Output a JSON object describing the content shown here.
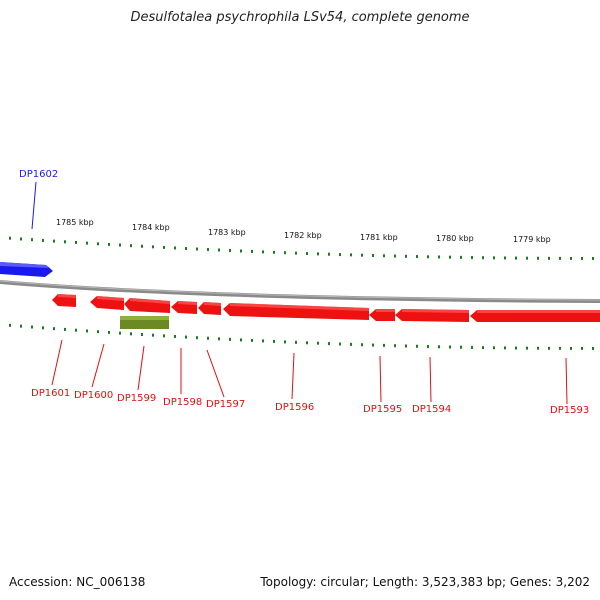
{
  "title": "Desulfotalea psychrophila LSv54, complete genome",
  "footer": {
    "accession": "Accession: NC_006138",
    "topology": "Topology: circular; Length: 3,523,383 bp; Genes: 3,202"
  },
  "colors": {
    "backbone": "#8a8a8a",
    "forward_gene": "#1a1aee",
    "reverse_gene": "#ee1111",
    "rna_feature": "#6b8a23",
    "scale_tick": "#1f7a1f"
  },
  "scale": {
    "labels": [
      "1785 kbp",
      "1784 kbp",
      "1783 kbp",
      "1782 kbp",
      "1781 kbp",
      "1780 kbp",
      "1779 kbp"
    ]
  },
  "genes": [
    {
      "id": "DP1602",
      "strand": "forward"
    },
    {
      "id": "DP1601",
      "strand": "reverse"
    },
    {
      "id": "DP1600",
      "strand": "reverse"
    },
    {
      "id": "DP1599",
      "strand": "reverse"
    },
    {
      "id": "DP1598",
      "strand": "reverse"
    },
    {
      "id": "DP1597",
      "strand": "reverse"
    },
    {
      "id": "DP1596",
      "strand": "reverse"
    },
    {
      "id": "DP1595",
      "strand": "reverse"
    },
    {
      "id": "DP1594",
      "strand": "reverse"
    },
    {
      "id": "DP1593",
      "strand": "reverse"
    }
  ]
}
